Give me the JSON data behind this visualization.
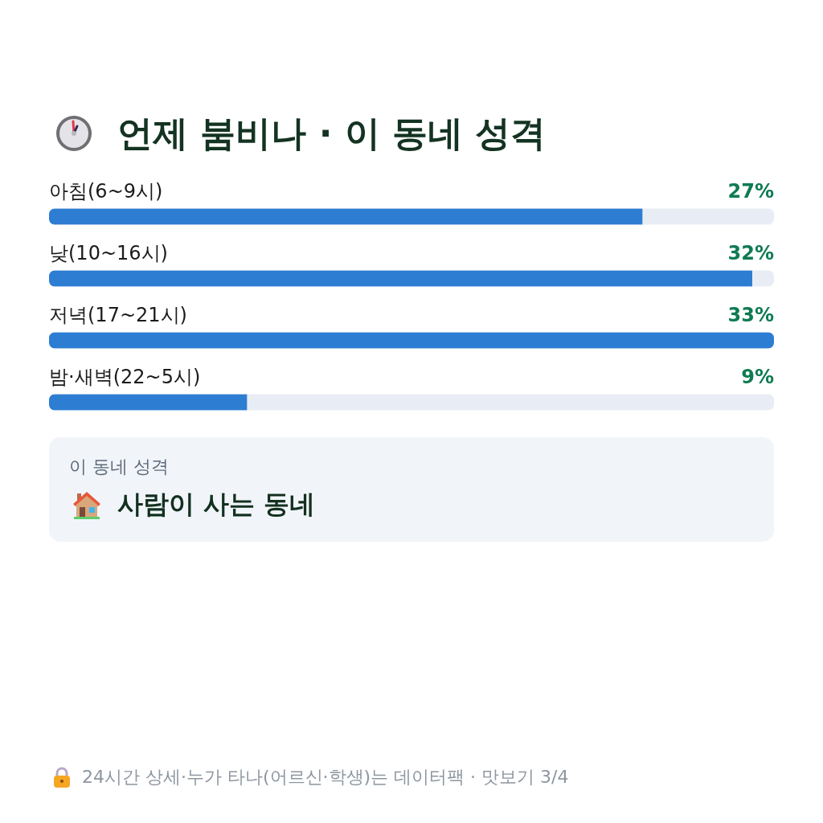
{
  "chart_data": {
    "type": "bar",
    "orientation": "horizontal",
    "title": "언제 붐비나 · 이 동네 성격",
    "categories": [
      "아침(6~9시)",
      "낮(10~16시)",
      "저녁(17~21시)",
      "밤·새벽(22~5시)"
    ],
    "values": [
      27,
      32,
      33,
      9
    ],
    "color": "#2d7dd2",
    "value_labels": [
      "27%",
      "32%",
      "33%",
      "9%"
    ],
    "xlim": [
      0,
      33
    ],
    "tick_labels": "y",
    "annotations": [
      "이 동네 성격",
      "사람이 사는 동네",
      "24시간 상세·누가 타나(어르신·학생)는 데이터팩 · 맛보기 3/4"
    ]
  }
}
